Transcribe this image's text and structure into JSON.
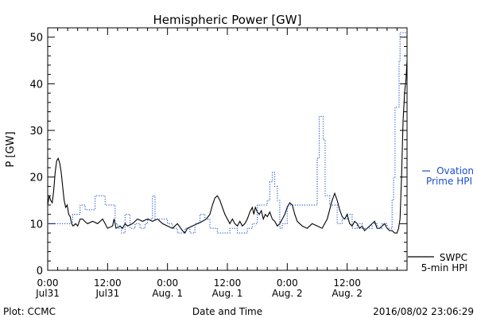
{
  "chart_data": {
    "type": "line",
    "title": "Hemispheric Power [GW]",
    "ylabel": "P [GW]",
    "xlabel": "Date and Time",
    "ylim": [
      0,
      52
    ],
    "xlim": [
      0,
      72
    ],
    "yticks": [
      0,
      10,
      20,
      30,
      40,
      50
    ],
    "xticks": [
      {
        "x": 0,
        "time": "0:00",
        "date": "Jul31"
      },
      {
        "x": 12,
        "time": "12:00",
        "date": "Jul31"
      },
      {
        "x": 24,
        "time": "0:00",
        "date": "Aug. 1"
      },
      {
        "x": 36,
        "time": "12:00",
        "date": "Aug. 1"
      },
      {
        "x": 48,
        "time": "0:00",
        "date": "Aug. 2"
      },
      {
        "x": 60,
        "time": "12:00",
        "date": "Aug. 2"
      }
    ],
    "series": [
      {
        "name": "SWPC 5-min HPI",
        "label_lines": [
          "SWPC",
          "5-min HPI"
        ],
        "color": "#000000",
        "style": "solid",
        "points": [
          [
            0,
            14
          ],
          [
            0.3,
            16
          ],
          [
            0.6,
            15
          ],
          [
            0.9,
            14.5
          ],
          [
            1.2,
            17
          ],
          [
            1.5,
            21
          ],
          [
            1.8,
            23.5
          ],
          [
            2.1,
            24
          ],
          [
            2.4,
            23
          ],
          [
            2.7,
            21
          ],
          [
            3.0,
            18
          ],
          [
            3.3,
            15
          ],
          [
            3.6,
            13.5
          ],
          [
            3.9,
            14
          ],
          [
            4.2,
            12
          ],
          [
            4.5,
            11.5
          ],
          [
            4.8,
            10
          ],
          [
            5.1,
            9.5
          ],
          [
            5.6,
            10
          ],
          [
            6.0,
            9.5
          ],
          [
            6.5,
            11
          ],
          [
            7.0,
            11
          ],
          [
            7.4,
            10.5
          ],
          [
            8.0,
            10
          ],
          [
            9.0,
            10.5
          ],
          [
            10.0,
            10
          ],
          [
            11.0,
            11
          ],
          [
            11.5,
            10
          ],
          [
            12.0,
            9
          ],
          [
            13.0,
            9.5
          ],
          [
            13.3,
            11
          ],
          [
            13.7,
            9
          ],
          [
            14.5,
            9.5
          ],
          [
            15.0,
            9
          ],
          [
            15.5,
            10
          ],
          [
            16.0,
            9.5
          ],
          [
            17.0,
            10
          ],
          [
            18.0,
            11
          ],
          [
            19.0,
            10.5
          ],
          [
            20.0,
            11
          ],
          [
            21.0,
            10.5
          ],
          [
            22.0,
            11
          ],
          [
            23.0,
            10
          ],
          [
            24.0,
            9.5
          ],
          [
            25.0,
            9
          ],
          [
            26.0,
            10
          ],
          [
            27.0,
            8.5
          ],
          [
            27.5,
            8
          ],
          [
            28.0,
            9
          ],
          [
            29.0,
            9.5
          ],
          [
            30.0,
            10
          ],
          [
            31.0,
            10.5
          ],
          [
            31.8,
            11
          ],
          [
            32.5,
            12
          ],
          [
            33.0,
            14
          ],
          [
            33.5,
            15.5
          ],
          [
            34.0,
            16
          ],
          [
            34.5,
            15
          ],
          [
            35.0,
            13.5
          ],
          [
            35.5,
            12
          ],
          [
            36.0,
            11
          ],
          [
            36.5,
            10
          ],
          [
            37.0,
            11
          ],
          [
            37.5,
            10
          ],
          [
            38.0,
            9.5
          ],
          [
            38.5,
            10.5
          ],
          [
            39.0,
            9.5
          ],
          [
            39.5,
            10
          ],
          [
            40.0,
            11
          ],
          [
            40.5,
            12.5
          ],
          [
            41.0,
            13.5
          ],
          [
            41.3,
            12
          ],
          [
            41.6,
            13.5
          ],
          [
            42.0,
            12.5
          ],
          [
            42.4,
            12
          ],
          [
            42.8,
            12.8
          ],
          [
            43.2,
            11
          ],
          [
            43.6,
            12
          ],
          [
            44.0,
            11.5
          ],
          [
            44.5,
            12.5
          ],
          [
            45.0,
            11
          ],
          [
            45.5,
            10.5
          ],
          [
            46.0,
            9.5
          ],
          [
            46.5,
            10
          ],
          [
            47.0,
            11
          ],
          [
            47.5,
            12
          ],
          [
            48.0,
            13.5
          ],
          [
            48.5,
            14.5
          ],
          [
            49.0,
            14
          ],
          [
            49.5,
            12
          ],
          [
            50.0,
            10.5
          ],
          [
            50.5,
            10
          ],
          [
            51.0,
            9.5
          ],
          [
            52.0,
            9
          ],
          [
            53.0,
            10
          ],
          [
            54.0,
            9.5
          ],
          [
            55.0,
            9
          ],
          [
            55.5,
            10
          ],
          [
            56.0,
            11
          ],
          [
            56.5,
            13
          ],
          [
            57.0,
            15
          ],
          [
            57.5,
            16.5
          ],
          [
            58.0,
            15
          ],
          [
            58.5,
            13
          ],
          [
            59.0,
            11.5
          ],
          [
            59.5,
            11
          ],
          [
            60.0,
            12
          ],
          [
            60.5,
            10
          ],
          [
            61.0,
            9.5
          ],
          [
            61.5,
            10.5
          ],
          [
            62.0,
            10
          ],
          [
            62.5,
            9
          ],
          [
            63.0,
            9.5
          ],
          [
            63.5,
            8.5
          ],
          [
            64.0,
            9
          ],
          [
            64.5,
            9.5
          ],
          [
            65.0,
            10
          ],
          [
            65.5,
            10.5
          ],
          [
            66.0,
            9
          ],
          [
            66.5,
            9
          ],
          [
            67.0,
            9.5
          ],
          [
            67.5,
            10
          ],
          [
            68.0,
            9
          ],
          [
            68.5,
            8.5
          ],
          [
            69.0,
            8.5
          ],
          [
            69.5,
            8
          ],
          [
            70.0,
            8
          ],
          [
            70.3,
            9
          ],
          [
            70.6,
            11
          ],
          [
            70.9,
            20
          ],
          [
            71.2,
            32
          ],
          [
            71.5,
            38
          ],
          [
            71.8,
            41
          ],
          [
            72.0,
            45
          ]
        ]
      },
      {
        "name": "Ovation Prime HPI",
        "label_lines": [
          "Ovation",
          "Prime HPI"
        ],
        "color": "#1a4fc9",
        "style": "dotted",
        "points": [
          [
            0,
            10
          ],
          [
            1.5,
            10
          ],
          [
            1.5,
            10
          ],
          [
            3.5,
            10
          ],
          [
            3.5,
            10
          ],
          [
            5,
            10
          ],
          [
            5,
            12
          ],
          [
            6.5,
            12
          ],
          [
            6.5,
            14
          ],
          [
            7.5,
            14
          ],
          [
            7.5,
            13
          ],
          [
            9.5,
            13
          ],
          [
            9.5,
            16
          ],
          [
            11.5,
            16
          ],
          [
            11.5,
            14
          ],
          [
            13.5,
            14
          ],
          [
            13.5,
            10
          ],
          [
            14,
            10
          ],
          [
            14,
            9
          ],
          [
            14.8,
            9
          ],
          [
            14.8,
            8
          ],
          [
            15.5,
            8
          ],
          [
            15.5,
            12
          ],
          [
            16.5,
            12
          ],
          [
            16.5,
            9
          ],
          [
            17.5,
            9
          ],
          [
            17.5,
            10
          ],
          [
            18.5,
            10
          ],
          [
            18.5,
            9
          ],
          [
            19.5,
            9
          ],
          [
            19.5,
            10
          ],
          [
            20,
            10
          ],
          [
            20,
            11
          ],
          [
            21,
            11
          ],
          [
            21,
            16
          ],
          [
            21.5,
            16
          ],
          [
            21.5,
            11
          ],
          [
            24,
            11
          ],
          [
            24,
            10
          ],
          [
            25,
            10
          ],
          [
            25,
            9
          ],
          [
            26,
            9
          ],
          [
            26,
            8
          ],
          [
            27.5,
            8
          ],
          [
            27.5,
            9
          ],
          [
            28.5,
            9
          ],
          [
            28.5,
            8
          ],
          [
            29.5,
            8
          ],
          [
            29.5,
            10
          ],
          [
            30.5,
            10
          ],
          [
            30.5,
            12
          ],
          [
            31.5,
            12
          ],
          [
            31.5,
            11
          ],
          [
            32.5,
            11
          ],
          [
            32.5,
            9
          ],
          [
            34,
            9
          ],
          [
            34,
            8
          ],
          [
            36.5,
            8
          ],
          [
            36.5,
            9
          ],
          [
            38,
            9
          ],
          [
            38,
            8
          ],
          [
            40,
            8
          ],
          [
            40,
            9
          ],
          [
            41,
            9
          ],
          [
            41,
            10
          ],
          [
            42,
            10
          ],
          [
            42,
            14
          ],
          [
            44,
            14
          ],
          [
            44,
            15
          ],
          [
            44.5,
            15
          ],
          [
            44.5,
            19
          ],
          [
            45,
            19
          ],
          [
            45,
            21
          ],
          [
            45.5,
            21
          ],
          [
            45.5,
            18
          ],
          [
            46,
            18
          ],
          [
            46,
            15
          ],
          [
            46.5,
            15
          ],
          [
            46.5,
            9
          ],
          [
            47,
            9
          ],
          [
            47,
            10
          ],
          [
            48,
            10
          ],
          [
            48,
            14
          ],
          [
            54,
            14
          ],
          [
            54,
            24
          ],
          [
            54.4,
            24
          ],
          [
            54.4,
            33
          ],
          [
            55.2,
            33
          ],
          [
            55.2,
            28
          ],
          [
            55.6,
            28
          ],
          [
            55.6,
            16
          ],
          [
            56.5,
            16
          ],
          [
            56.5,
            14
          ],
          [
            58,
            14
          ],
          [
            58,
            10
          ],
          [
            59,
            10
          ],
          [
            59,
            11
          ],
          [
            60,
            11
          ],
          [
            60,
            12
          ],
          [
            61,
            12
          ],
          [
            61,
            9
          ],
          [
            62,
            9
          ],
          [
            62,
            10
          ],
          [
            63,
            10
          ],
          [
            63,
            9
          ],
          [
            65,
            9
          ],
          [
            65,
            10
          ],
          [
            66,
            10
          ],
          [
            66,
            9
          ],
          [
            67,
            9
          ],
          [
            67,
            10
          ],
          [
            68,
            10
          ],
          [
            68,
            9
          ],
          [
            69,
            9
          ],
          [
            69,
            15
          ],
          [
            69.3,
            15
          ],
          [
            69.3,
            20
          ],
          [
            69.6,
            20
          ],
          [
            69.6,
            35
          ],
          [
            70.4,
            35
          ],
          [
            70.4,
            45
          ],
          [
            70.6,
            45
          ],
          [
            70.6,
            51
          ],
          [
            72,
            51
          ]
        ]
      }
    ],
    "legend_placement": "right"
  },
  "footer": {
    "credit": "Plot: CCMC",
    "timestamp": "2016/08/02 23:06:29"
  }
}
